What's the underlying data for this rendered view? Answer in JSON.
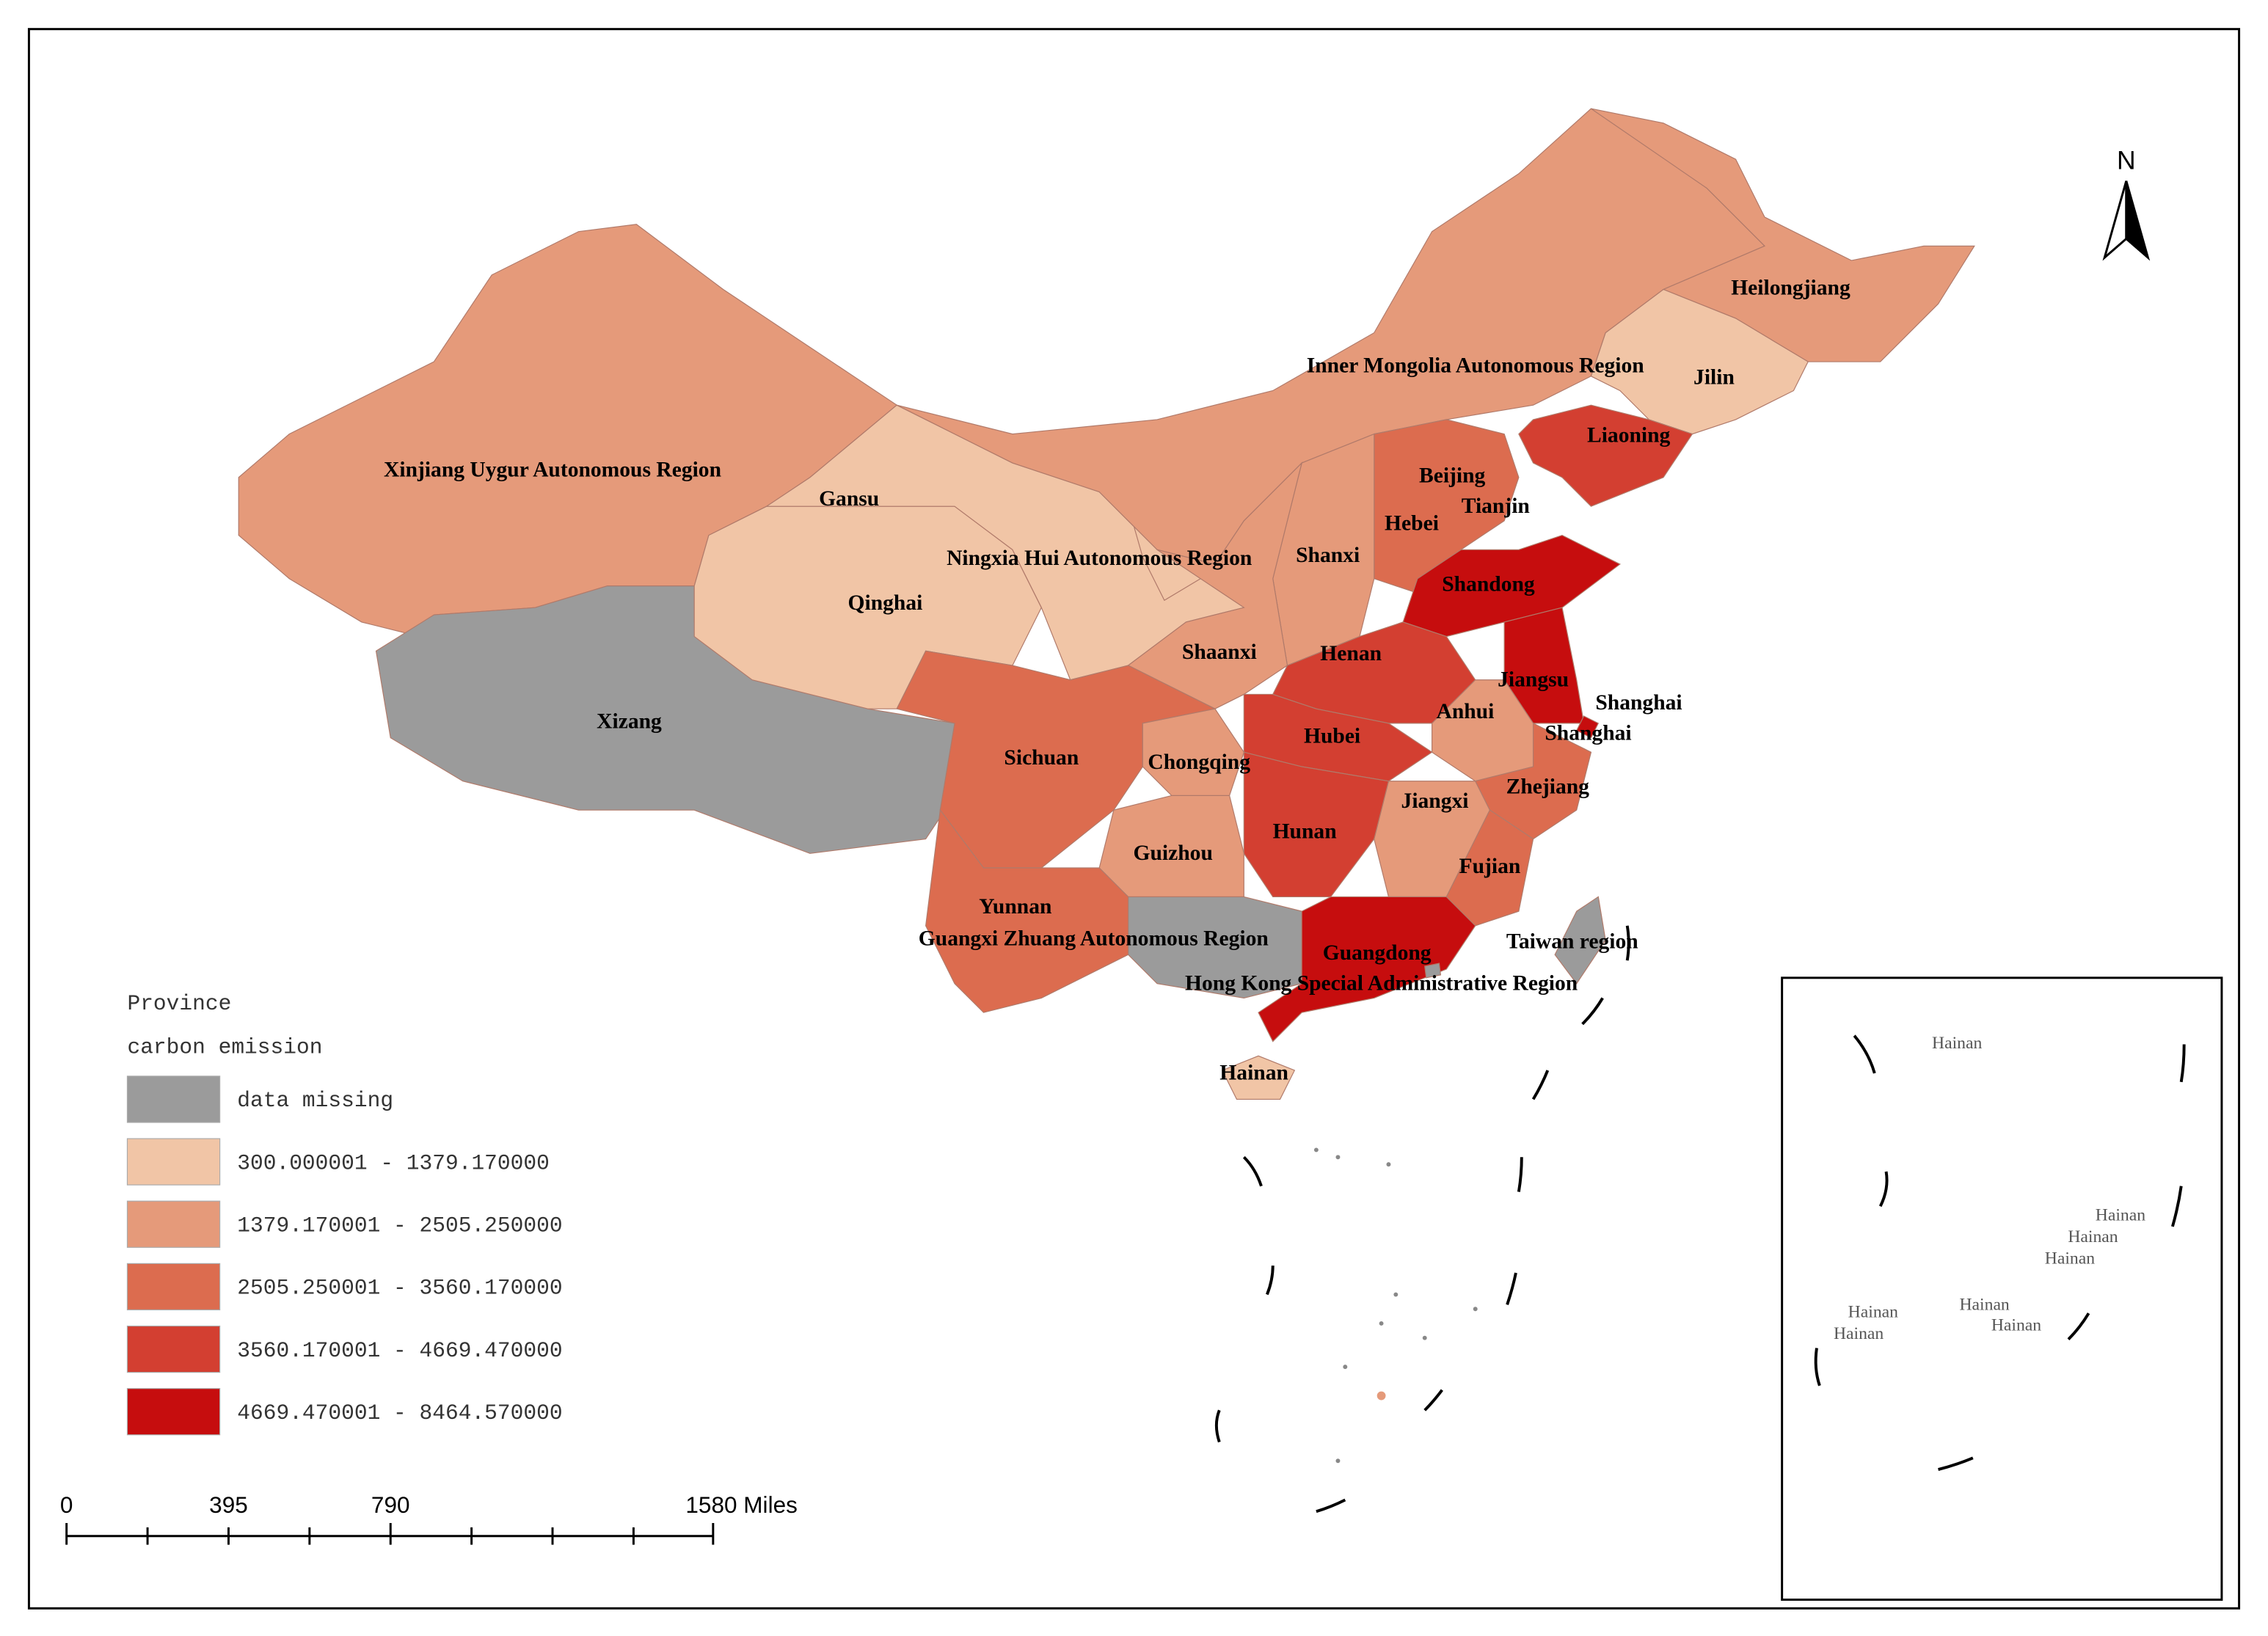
{
  "map": {
    "regions": [
      {
        "label": "Xinjiang Uygur Autonomous Region",
        "color": "#e59a7a"
      },
      {
        "label": "Xizang",
        "color": "#9b9b9b"
      },
      {
        "label": "Qinghai",
        "color": "#f1c5a6"
      },
      {
        "label": "Gansu",
        "color": "#f1c5a6"
      },
      {
        "label": "Ningxia Hui Autonomous Region",
        "color": "#f1c5a6"
      },
      {
        "label": "Inner Mongolia Autonomous Region",
        "color": "#e59a7a"
      },
      {
        "label": "Heilongjiang",
        "color": "#e59a7a"
      },
      {
        "label": "Jilin",
        "color": "#f1c5a6"
      },
      {
        "label": "Liaoning",
        "color": "#d33f31"
      },
      {
        "label": "Beijing",
        "color": "#dc6c4f"
      },
      {
        "label": "Tianjin",
        "color": "#dc6c4f"
      },
      {
        "label": "Hebei",
        "color": "#dc6c4f"
      },
      {
        "label": "Shanxi",
        "color": "#e59a7a"
      },
      {
        "label": "Shaanxi",
        "color": "#e59a7a"
      },
      {
        "label": "Shandong",
        "color": "#c60d0e"
      },
      {
        "label": "Henan",
        "color": "#d33f31"
      },
      {
        "label": "Jiangsu",
        "color": "#c60d0e"
      },
      {
        "label": "Shanghai",
        "color": "#c60d0e"
      },
      {
        "label": "Shanghai",
        "color": "#c60d0e"
      },
      {
        "label": "Anhui",
        "color": "#e59a7a"
      },
      {
        "label": "Hubei",
        "color": "#d33f31"
      },
      {
        "label": "Sichuan",
        "color": "#dc6c4f"
      },
      {
        "label": "Chongqing",
        "color": "#e59a7a"
      },
      {
        "label": "Jiangxi",
        "color": "#e59a7a"
      },
      {
        "label": "Zhejiang",
        "color": "#dc6c4f"
      },
      {
        "label": "Hunan",
        "color": "#d33f31"
      },
      {
        "label": "Guizhou",
        "color": "#e59a7a"
      },
      {
        "label": "Fujian",
        "color": "#dc6c4f"
      },
      {
        "label": "Yunnan",
        "color": "#dc6c4f"
      },
      {
        "label": "Guangxi Zhuang Autonomous Region",
        "color": "#9b9b9b"
      },
      {
        "label": "Guangdong",
        "color": "#c60d0e"
      },
      {
        "label": "Taiwan region",
        "color": "#9b9b9b"
      },
      {
        "label": "Hong Kong Special Administrative Region",
        "color": "#9b9b9b"
      },
      {
        "label": "Hainan",
        "color": "#f1c5a6"
      }
    ],
    "legend": {
      "title": [
        "Province",
        "carbon emission"
      ],
      "classes": [
        {
          "label": "data missing",
          "color": "#9b9b9b"
        },
        {
          "label": "300.000001 - 1379.170000",
          "color": "#f1c5a6"
        },
        {
          "label": "1379.170001 - 2505.250000",
          "color": "#e59a7a"
        },
        {
          "label": "2505.250001 - 3560.170000",
          "color": "#dc6c4f"
        },
        {
          "label": "3560.170001 - 4669.470000",
          "color": "#d33f31"
        },
        {
          "label": "4669.470001 - 8464.570000",
          "color": "#c60d0e"
        }
      ]
    },
    "scale_bar": {
      "labels": [
        "0",
        "395",
        "790",
        "1580 Miles"
      ]
    },
    "north_arrow": "N",
    "inset": {
      "labels": [
        "Hainan",
        "Hainan",
        "Hainan",
        "Hainan",
        "Hainan",
        "Hainan",
        "Hainan",
        "Hainan"
      ]
    }
  }
}
